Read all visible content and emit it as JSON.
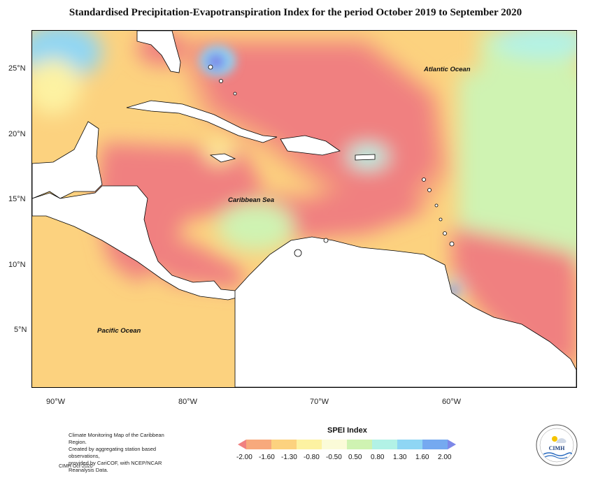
{
  "title": "Standardised Precipitation-Evapotranspiration Index for the period October 2019 to September 2020",
  "map": {
    "lat_ticks": [
      "25°N",
      "20°N",
      "15°N",
      "10°N",
      "5°N"
    ],
    "lon_ticks": [
      "90°W",
      "80°W",
      "70°W",
      "60°W"
    ],
    "ocean_labels": {
      "atlantic": "Atlantic Ocean",
      "caribbean": "Caribbean Sea",
      "pacific": "Pacific Ocean"
    },
    "colors": {
      "extreme_dry": "#f08080",
      "severe_dry": "#f7a97c",
      "moderate_dry": "#fcd27f",
      "mild_dry": "#fdf2a2",
      "near_normal": "#fbfbd8",
      "mild_wet": "#cff3b2",
      "moderate_wet": "#b2f2e6",
      "very_wet": "#8fd6f4",
      "extreme_wet": "#7d88e8",
      "land": "#ffffff"
    }
  },
  "legend": {
    "title": "SPEI Index",
    "labels": [
      "-2.00",
      "-1.60",
      "-1.30",
      "-0.80",
      "-0.50",
      "0.50",
      "0.80",
      "1.30",
      "1.60",
      "2.00"
    ],
    "colors": [
      "#f08080",
      "#f7a97c",
      "#fcd27f",
      "#fdf2a2",
      "#fbfbd8",
      "#cff3b2",
      "#b2f2e6",
      "#8fd6f4",
      "#75a9f0",
      "#7d88e8"
    ]
  },
  "footer": {
    "line1": "Climate Monitoring Map of the Caribbean Region.",
    "line2": "Created by aggregating station based observations,",
    "line3": "provided by CariCOF, with NCEP/NCAR Reanalysis Data.",
    "credit": "CIMH Oct-2020"
  },
  "logo": {
    "text": "CIMH"
  }
}
